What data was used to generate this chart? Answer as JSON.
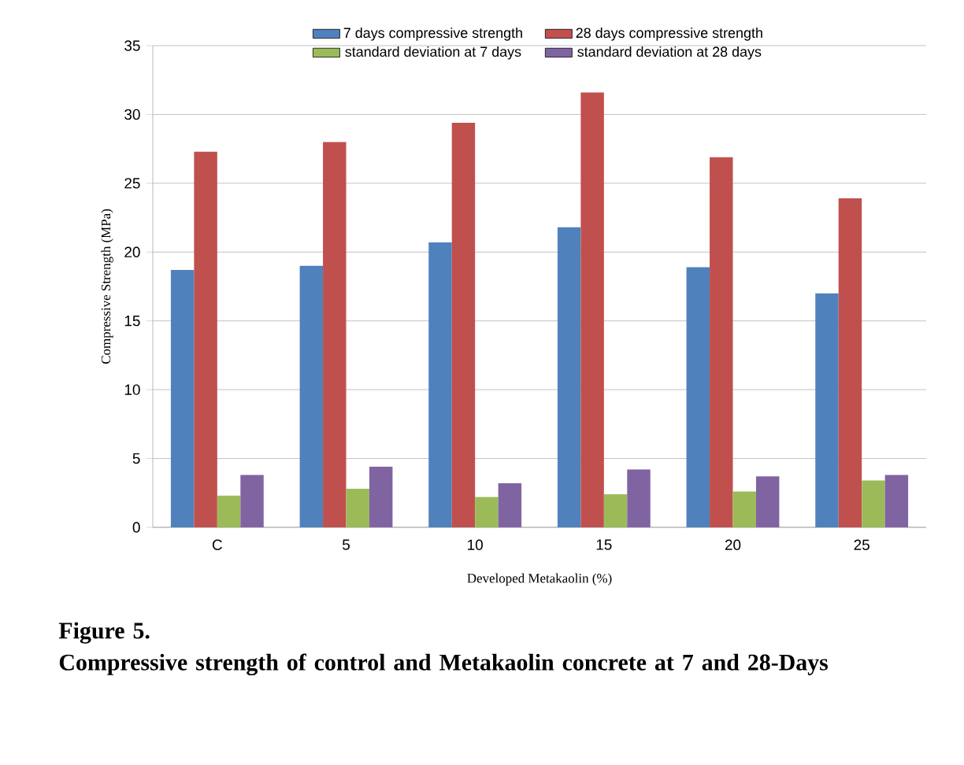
{
  "chart_data": {
    "type": "bar",
    "xlabel": "Developed Metakaolin (%)",
    "ylabel": "Compressive Strength (MPa)",
    "categories": [
      "C",
      "5",
      "10",
      "15",
      "20",
      "25"
    ],
    "series": [
      {
        "name": "7 days compressive strength",
        "color": "#4f81bd",
        "values": [
          18.7,
          19.0,
          20.7,
          21.8,
          18.9,
          17.0
        ]
      },
      {
        "name": "28 days compressive strength",
        "color": "#c0504d",
        "values": [
          27.3,
          28.0,
          29.4,
          31.6,
          26.9,
          23.9
        ]
      },
      {
        "name": "standard deviation at 7 days",
        "color": "#9bbb59",
        "values": [
          2.3,
          2.8,
          2.2,
          2.4,
          2.6,
          3.4
        ]
      },
      {
        "name": "standard deviation at 28 days",
        "color": "#8064a2",
        "values": [
          3.8,
          4.4,
          3.2,
          4.2,
          3.7,
          3.8
        ]
      }
    ],
    "ylim": [
      0,
      35
    ],
    "yticks": [
      0,
      5,
      10,
      15,
      20,
      25,
      30,
      35
    ],
    "grid": "y",
    "legend": "top",
    "annotations": [
      "Figure 5.",
      "Compressive strength of control and Metakaolin concrete at 7 and 28-Days"
    ]
  }
}
